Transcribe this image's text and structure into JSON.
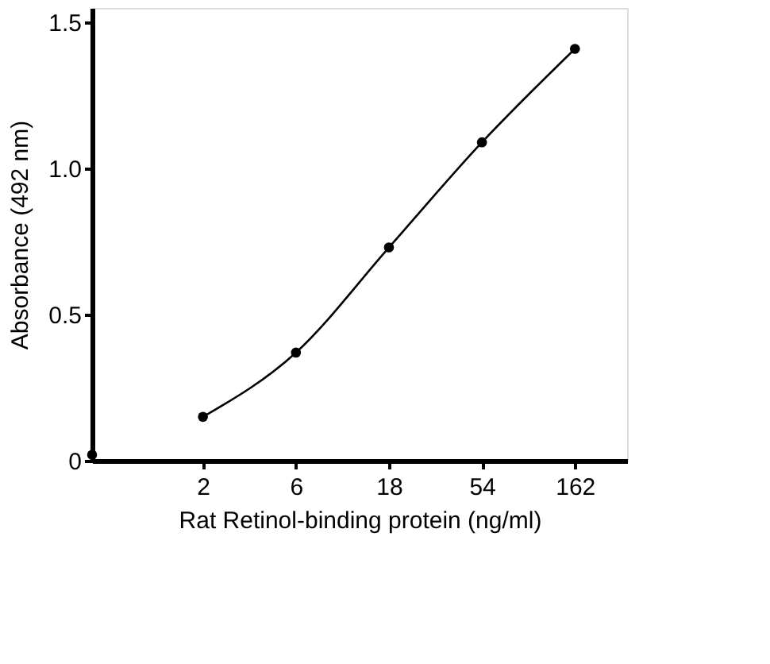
{
  "chart_data": {
    "type": "line",
    "xlabel": "Rat Retinol-binding protein (ng/ml)",
    "ylabel": "Absorbance (492 nm)",
    "log": "x",
    "xlim": [
      0.54,
      300
    ],
    "xticks": [
      2,
      6,
      18,
      54,
      162
    ],
    "ylim": [
      0,
      1.55
    ],
    "yticks": [
      0,
      0.5,
      {
        "value": 1.0,
        "label": "1.0"
      },
      1.5
    ],
    "grid": false,
    "marker": "circle",
    "line_style": "solid",
    "series": [
      {
        "color": "#000000",
        "x": [
          2,
          6,
          18,
          54,
          162
        ],
        "values": [
          0.15,
          0.37,
          0.73,
          1.09,
          1.41
        ]
      },
      {
        "type": "scatter",
        "color": "#000000",
        "x": [
          0.54
        ],
        "values": [
          0.02
        ]
      }
    ]
  }
}
